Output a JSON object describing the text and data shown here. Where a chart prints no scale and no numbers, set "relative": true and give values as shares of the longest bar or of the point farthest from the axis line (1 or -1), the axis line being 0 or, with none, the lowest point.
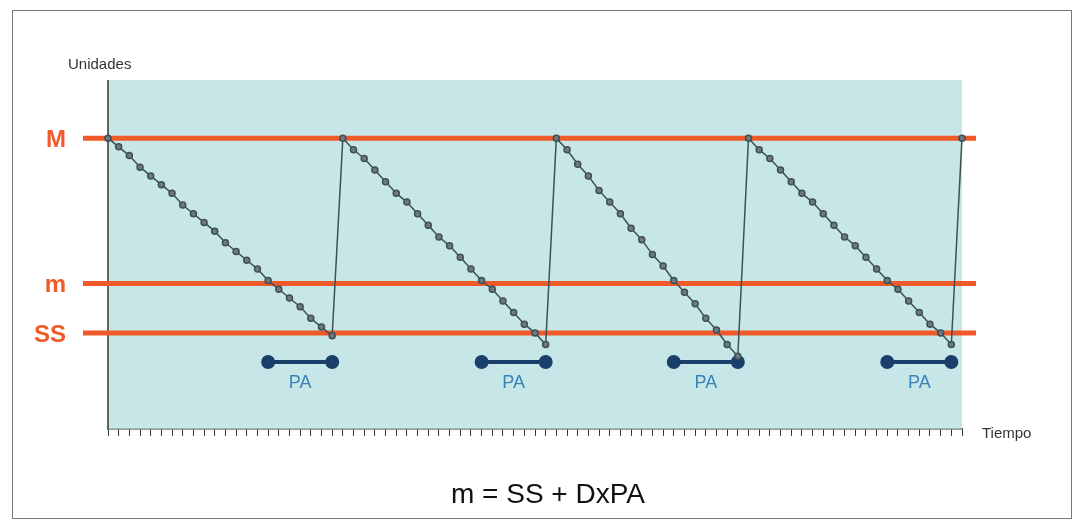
{
  "chart_data": {
    "type": "line",
    "relative": true,
    "xlabel": "Tiempo",
    "ylabel": "Unidades",
    "marker": "circle",
    "categories": [
      null,
      null,
      null,
      null,
      null,
      null,
      null,
      null,
      null,
      null,
      null,
      null,
      null,
      null,
      null,
      null,
      null,
      null,
      null,
      null,
      null,
      null,
      null,
      null,
      null,
      null,
      null,
      null,
      null,
      null,
      null,
      null,
      null,
      null,
      null,
      null,
      null,
      null,
      null,
      null,
      null,
      null,
      null,
      null,
      null,
      null,
      null,
      null,
      null,
      null,
      null,
      null,
      null,
      null,
      null,
      null,
      null,
      null,
      null,
      null,
      null,
      null,
      null,
      null,
      null,
      null,
      null,
      null,
      null,
      null,
      null,
      null,
      null,
      null,
      null,
      null,
      null,
      null,
      null,
      null,
      null
    ],
    "series": [
      {
        "color": "#3f4f57",
        "values": [
          1.0,
          0.97,
          0.94,
          0.9,
          0.87,
          0.84,
          0.81,
          0.77,
          0.74,
          0.71,
          0.68,
          0.64,
          0.61,
          0.58,
          0.55,
          0.51,
          0.48,
          0.45,
          0.42,
          0.38,
          0.35,
          0.32,
          1.0,
          0.96,
          0.93,
          0.89,
          0.85,
          0.81,
          0.78,
          0.74,
          0.7,
          0.66,
          0.63,
          0.59,
          0.55,
          0.51,
          0.48,
          0.44,
          0.4,
          0.36,
          0.33,
          0.29,
          1.0,
          0.96,
          0.91,
          0.87,
          0.82,
          0.78,
          0.74,
          0.69,
          0.65,
          0.6,
          0.56,
          0.51,
          0.47,
          0.43,
          0.38,
          0.34,
          0.29,
          0.25,
          1.0,
          0.96,
          0.93,
          0.89,
          0.85,
          0.81,
          0.78,
          0.74,
          0.7,
          0.66,
          0.63,
          0.59,
          0.55,
          0.51,
          0.48,
          0.44,
          0.4,
          0.36,
          0.33,
          0.29,
          1.0
        ]
      },
      {
        "name": "PA",
        "color": "#1b3f6b",
        "values": [
          null,
          null,
          null,
          null,
          null,
          null,
          null,
          null,
          null,
          null,
          null,
          null,
          null,
          null,
          null,
          0.23,
          null,
          null,
          null,
          null,
          null,
          0.23,
          null,
          null,
          null,
          null,
          null,
          null,
          null,
          null,
          null,
          null,
          null,
          null,
          null,
          null,
          null,
          null,
          null,
          null,
          null,
          null,
          null,
          null,
          null,
          null,
          null,
          null,
          null,
          null,
          null,
          null,
          null,
          null,
          null,
          null,
          null,
          null,
          null,
          null,
          null,
          null,
          null,
          null,
          null,
          null,
          null,
          null,
          null,
          null,
          null,
          null,
          null,
          null,
          null,
          null,
          null,
          null,
          null,
          null,
          null
        ]
      },
      {
        "name": "PA",
        "color": "#1b3f6b",
        "values": [
          null,
          null,
          null,
          null,
          null,
          null,
          null,
          null,
          null,
          null,
          null,
          null,
          null,
          null,
          null,
          null,
          null,
          null,
          null,
          null,
          null,
          null,
          null,
          null,
          null,
          null,
          null,
          null,
          null,
          null,
          null,
          null,
          null,
          null,
          null,
          0.23,
          null,
          null,
          null,
          null,
          null,
          0.23,
          null,
          null,
          null,
          null,
          null,
          null,
          null,
          null,
          null,
          null,
          null,
          null,
          null,
          null,
          null,
          null,
          null,
          null,
          null,
          null,
          null,
          null,
          null,
          null,
          null,
          null,
          null,
          null,
          null,
          null,
          null,
          null,
          null,
          null,
          null,
          null,
          null,
          null,
          null
        ]
      },
      {
        "name": "PA",
        "color": "#1b3f6b",
        "values": [
          null,
          null,
          null,
          null,
          null,
          null,
          null,
          null,
          null,
          null,
          null,
          null,
          null,
          null,
          null,
          null,
          null,
          null,
          null,
          null,
          null,
          null,
          null,
          null,
          null,
          null,
          null,
          null,
          null,
          null,
          null,
          null,
          null,
          null,
          null,
          null,
          null,
          null,
          null,
          null,
          null,
          null,
          null,
          null,
          null,
          null,
          null,
          null,
          null,
          null,
          null,
          null,
          null,
          0.23,
          null,
          null,
          null,
          null,
          null,
          0.23,
          null,
          null,
          null,
          null,
          null,
          null,
          null,
          null,
          null,
          null,
          null,
          null,
          null,
          null,
          null,
          null,
          null,
          null,
          null,
          null,
          null
        ]
      },
      {
        "name": "PA",
        "color": "#1b3f6b",
        "values": [
          null,
          null,
          null,
          null,
          null,
          null,
          null,
          null,
          null,
          null,
          null,
          null,
          null,
          null,
          null,
          null,
          null,
          null,
          null,
          null,
          null,
          null,
          null,
          null,
          null,
          null,
          null,
          null,
          null,
          null,
          null,
          null,
          null,
          null,
          null,
          null,
          null,
          null,
          null,
          null,
          null,
          null,
          null,
          null,
          null,
          null,
          null,
          null,
          null,
          null,
          null,
          null,
          null,
          null,
          null,
          null,
          null,
          null,
          null,
          null,
          null,
          null,
          null,
          null,
          null,
          null,
          null,
          null,
          null,
          null,
          null,
          null,
          null,
          0.23,
          null,
          null,
          null,
          null,
          null,
          0.23,
          null
        ]
      }
    ],
    "ref_lines": [
      {
        "axis": "y",
        "value": 1,
        "label": "M",
        "color": "#f05a28"
      },
      {
        "axis": "y",
        "value": 0.5,
        "label": "m",
        "color": "#f05a28"
      },
      {
        "axis": "y",
        "value": 0.33,
        "label": "SS",
        "color": "#f05a28"
      }
    ],
    "annotations": [
      "m = SS + DxPA"
    ]
  }
}
